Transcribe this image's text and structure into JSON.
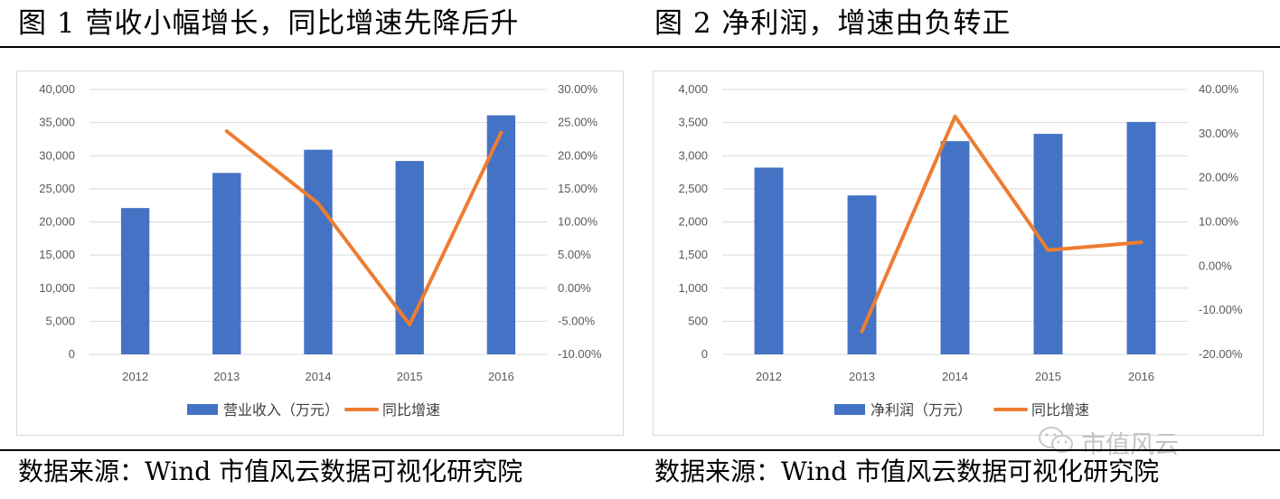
{
  "figures": [
    {
      "title": "图 1  营收小幅增长，同比增速先降后升",
      "source": "数据来源：Wind   市值风云数据可视化研究院"
    },
    {
      "title": "图 2  净利润，增速由负转正",
      "source": "数据来源：Wind   市值风云数据可视化研究院"
    }
  ],
  "watermark": {
    "text": "市值风云",
    "icon": "wechat-icon"
  },
  "colors": {
    "bar": "#4472C4",
    "line": "#ED7D31",
    "grid": "#d9d9d9",
    "axis_text": "#595959"
  },
  "chart_data": [
    {
      "type": "bar",
      "categories": [
        "2012",
        "2013",
        "2014",
        "2015",
        "2016"
      ],
      "series": [
        {
          "name": "营业收入（万元）",
          "type": "bar",
          "axis": "left",
          "values": [
            22100,
            27400,
            30900,
            29200,
            36100
          ]
        },
        {
          "name": "同比增速",
          "type": "line",
          "axis": "right",
          "values": [
            null,
            23.7,
            12.8,
            -5.5,
            23.5
          ]
        }
      ],
      "ylim_left": [
        0,
        40000
      ],
      "yticks_left": [
        "40,000",
        "35,000",
        "30,000",
        "25,000",
        "20,000",
        "15,000",
        "10,000",
        "5,000",
        "0"
      ],
      "ylim_right": [
        -10,
        30
      ],
      "yticks_right": [
        "30.00%",
        "25.00%",
        "20.00%",
        "15.00%",
        "10.00%",
        "5.00%",
        "0.00%",
        "-5.00%",
        "-10.00%"
      ],
      "grid": true,
      "legend": "bottom"
    },
    {
      "type": "bar",
      "categories": [
        "2012",
        "2013",
        "2014",
        "2015",
        "2016"
      ],
      "series": [
        {
          "name": "净利润（万元）",
          "type": "bar",
          "axis": "left",
          "values": [
            2820,
            2400,
            3220,
            3330,
            3510
          ]
        },
        {
          "name": "同比增速",
          "type": "line",
          "axis": "right",
          "values": [
            null,
            -14.8,
            33.9,
            3.6,
            5.4
          ]
        }
      ],
      "ylim_left": [
        0,
        4000
      ],
      "yticks_left": [
        "4,000",
        "3,500",
        "3,000",
        "2,500",
        "2,000",
        "1,500",
        "1,000",
        "500",
        "0"
      ],
      "ylim_right": [
        -20,
        40
      ],
      "yticks_right": [
        "40.00%",
        "30.00%",
        "20.00%",
        "10.00%",
        "0.00%",
        "-10.00%",
        "-20.00%"
      ],
      "grid": true,
      "legend": "bottom"
    }
  ]
}
